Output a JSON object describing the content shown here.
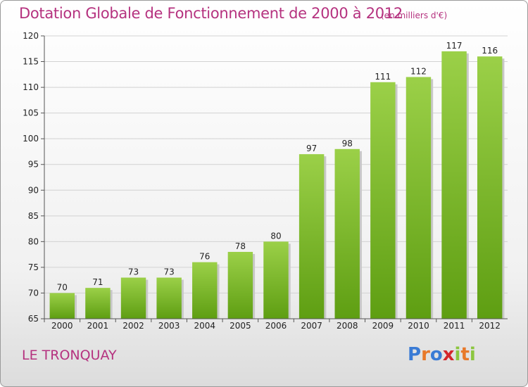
{
  "header": {
    "title": "Dotation Globale de Fonctionnement de 2000 à 2012",
    "units": "(en milliers d'€)"
  },
  "footer": {
    "commune": "LE TRONQUAY",
    "logo_letters": [
      "P",
      "r",
      "o",
      "x",
      "i",
      "t",
      "i"
    ]
  },
  "colors": {
    "accent": "#b5327f",
    "bar_light": "#9bd048",
    "bar_dark": "#5e9e12",
    "logo": [
      "#3a7bd5",
      "#e8792a",
      "#3a7bd5",
      "#d4262b",
      "#8cc63f",
      "#e8792a",
      "#8cc63f"
    ]
  },
  "chart_data": {
    "type": "bar",
    "categories": [
      "2000",
      "2001",
      "2002",
      "2003",
      "2004",
      "2005",
      "2006",
      "2007",
      "2008",
      "2009",
      "2010",
      "2011",
      "2012"
    ],
    "values": [
      70,
      71,
      73,
      73,
      76,
      78,
      80,
      97,
      98,
      111,
      112,
      117,
      116
    ],
    "title": "Dotation Globale de Fonctionnement de 2000 à 2012",
    "ylim": [
      65,
      120
    ],
    "yticks": [
      65,
      70,
      75,
      80,
      85,
      90,
      95,
      100,
      105,
      110,
      115,
      120
    ],
    "grid": true,
    "legend": "none"
  }
}
